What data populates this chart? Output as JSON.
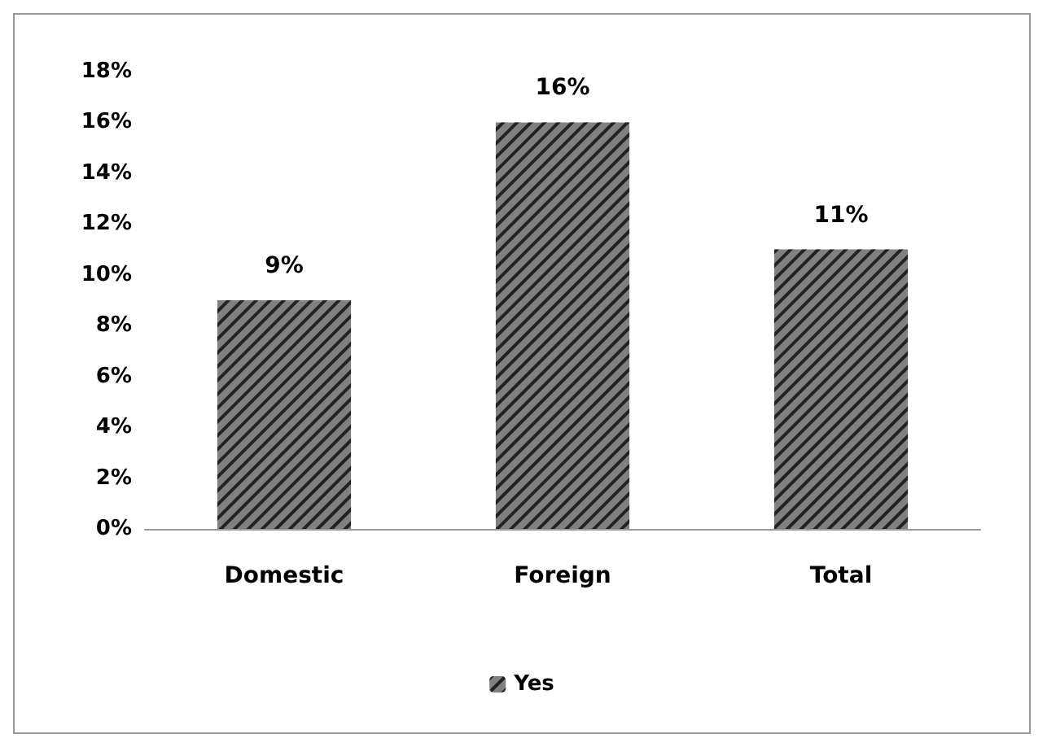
{
  "chart_data": {
    "type": "bar",
    "categories": [
      "Domestic",
      "Foreign",
      "Total"
    ],
    "series": [
      {
        "name": "Yes",
        "color": "#808080",
        "values": [
          9,
          16,
          11
        ],
        "value_labels": [
          "9%",
          "16%",
          "11%"
        ]
      }
    ],
    "ylim": [
      0,
      18
    ],
    "yticks": [
      {
        "value": 0,
        "label": "0%"
      },
      {
        "value": 2,
        "label": "2%"
      },
      {
        "value": 4,
        "label": "4%"
      },
      {
        "value": 6,
        "label": "6%"
      },
      {
        "value": 8,
        "label": "8%"
      },
      {
        "value": 10,
        "label": "10%"
      },
      {
        "value": 12,
        "label": "12%"
      },
      {
        "value": 14,
        "label": "14%"
      },
      {
        "value": 16,
        "label": "16%"
      },
      {
        "value": 18,
        "label": "18%"
      }
    ],
    "grid": false,
    "legend": "bottom"
  }
}
